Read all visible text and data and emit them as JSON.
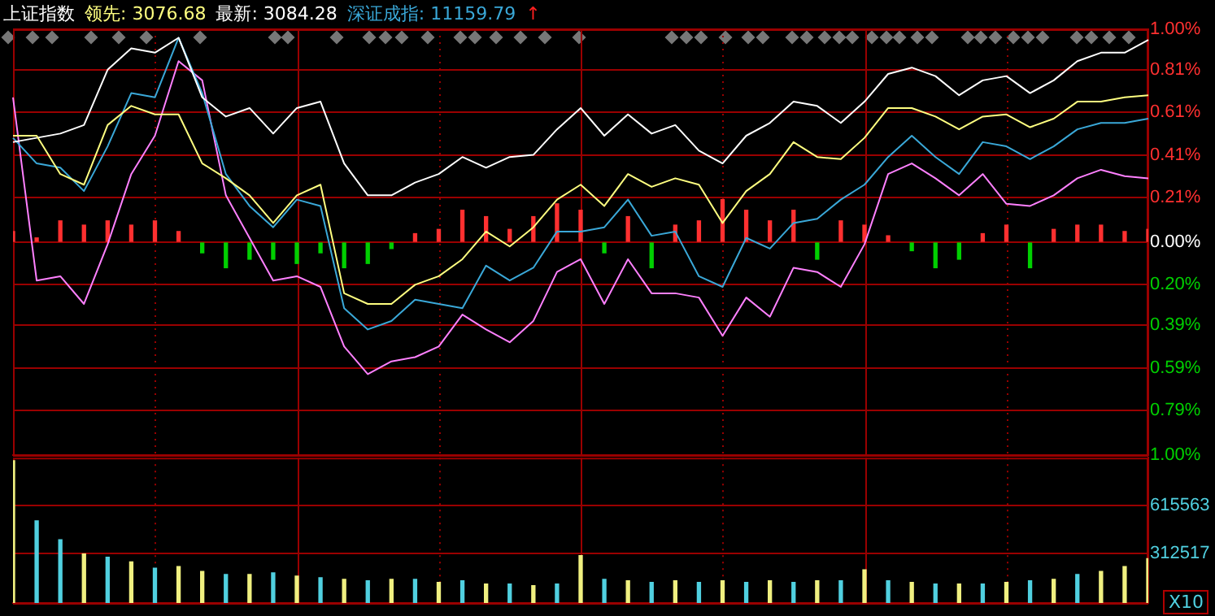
{
  "chart_data": [
    {
      "type": "line",
      "title": "上证指数",
      "categories": [
        null,
        null,
        null,
        null,
        null,
        null,
        null,
        null,
        null,
        null,
        null,
        null,
        null,
        null,
        null,
        null,
        null,
        null,
        null,
        null,
        null,
        null,
        null,
        null,
        null,
        null,
        null,
        null,
        null,
        null,
        null,
        null,
        null,
        null,
        null,
        null,
        null,
        null,
        null,
        null,
        null,
        null,
        null,
        null,
        null,
        null,
        null,
        null,
        null
      ],
      "series": [
        {
          "name": "领先: 3076.68",
          "color": "#ffff80",
          "values": [
            0.5,
            0.5,
            0.32,
            0.27,
            0.55,
            0.64,
            0.6,
            0.6,
            0.37,
            0.3,
            0.22,
            0.09,
            0.22,
            0.27,
            -0.24,
            -0.29,
            -0.29,
            -0.2,
            -0.16,
            -0.08,
            0.05,
            -0.02,
            0.07,
            0.2,
            0.27,
            0.17,
            0.32,
            0.26,
            0.3,
            0.27,
            0.09,
            0.24,
            0.32,
            0.47,
            0.4,
            0.39,
            0.49,
            0.63,
            0.63,
            0.59,
            0.53,
            0.59,
            0.6,
            0.54,
            0.58,
            0.66,
            0.66,
            0.68,
            0.69
          ]
        },
        {
          "name": "最新: 3084.28",
          "color": "#ffffff",
          "values": [
            0.47,
            0.49,
            0.51,
            0.55,
            0.81,
            0.91,
            0.89,
            0.96,
            0.68,
            0.59,
            0.63,
            0.51,
            0.63,
            0.66,
            0.37,
            0.22,
            0.22,
            0.28,
            0.32,
            0.4,
            0.35,
            0.4,
            0.41,
            0.53,
            0.63,
            0.5,
            0.6,
            0.51,
            0.55,
            0.43,
            0.37,
            0.5,
            0.56,
            0.66,
            0.64,
            0.56,
            0.66,
            0.79,
            0.82,
            0.78,
            0.69,
            0.76,
            0.78,
            0.7,
            0.76,
            0.85,
            0.89,
            0.89,
            0.95
          ]
        },
        {
          "name": "深证成指: 11159.79",
          "color": "#3aa8d8",
          "values": [
            0.49,
            0.37,
            0.35,
            0.24,
            0.45,
            0.7,
            0.68,
            0.96,
            0.7,
            0.32,
            0.17,
            0.07,
            0.2,
            0.17,
            -0.31,
            -0.41,
            -0.37,
            -0.27,
            -0.29,
            -0.31,
            -0.11,
            -0.18,
            -0.12,
            0.05,
            0.05,
            0.07,
            0.2,
            0.03,
            0.05,
            -0.16,
            -0.21,
            0.02,
            -0.03,
            0.09,
            0.11,
            0.2,
            0.27,
            0.4,
            0.5,
            0.4,
            0.32,
            0.47,
            0.45,
            0.39,
            0.45,
            0.53,
            0.56,
            0.56,
            0.58
          ]
        },
        {
          "color": "#ff80ff",
          "values": [
            0.68,
            -0.18,
            -0.16,
            -0.29,
            -0.01,
            0.32,
            0.5,
            0.85,
            0.76,
            0.22,
            0.02,
            -0.18,
            -0.16,
            -0.21,
            -0.49,
            -0.62,
            -0.56,
            -0.54,
            -0.49,
            -0.34,
            -0.41,
            -0.47,
            -0.37,
            -0.14,
            -0.08,
            -0.29,
            -0.08,
            -0.24,
            -0.24,
            -0.26,
            -0.44,
            -0.26,
            -0.35,
            -0.12,
            -0.14,
            -0.21,
            -0.01,
            0.32,
            0.37,
            0.3,
            0.22,
            0.32,
            0.18,
            0.17,
            0.22,
            0.3,
            0.34,
            0.31,
            0.3
          ]
        },
        {
          "type": "bar",
          "colors": [
            "#ff3030",
            "#ff3030",
            "#ff3030",
            "#ff3030",
            "#ff3030",
            "#ff3030",
            "#ff3030",
            "#ff3030",
            "#00d000",
            "#00d000",
            "#00d000",
            "#00d000",
            "#00d000",
            "#00d000",
            "#00d000",
            "#00d000",
            "#00d000",
            "#ff3030",
            "#ff3030",
            "#ff3030",
            "#ff3030",
            "#ff3030",
            "#ff3030",
            "#ff3030",
            "#ff3030",
            "#00d000",
            "#ff3030",
            "#00d000",
            "#ff3030",
            "#ff3030",
            "#ff3030",
            "#ff3030",
            "#ff3030",
            "#ff3030",
            "#00d000",
            "#ff3030",
            "#ff3030",
            "#ff3030",
            "#00d000",
            "#00d000",
            "#00d000",
            "#ff3030",
            "#ff3030",
            "#00d000",
            "#ff3030",
            "#ff3030",
            "#ff3030",
            "#ff3030",
            "#ff3030"
          ],
          "values": [
            0.05,
            0.02,
            0.1,
            0.08,
            0.1,
            0.08,
            0.1,
            0.05,
            -0.05,
            -0.12,
            -0.08,
            -0.08,
            -0.1,
            -0.05,
            -0.12,
            -0.1,
            -0.03,
            0.04,
            0.06,
            0.15,
            0.12,
            0.06,
            0.12,
            0.18,
            0.15,
            -0.05,
            0.12,
            -0.12,
            0.08,
            0.1,
            0.2,
            0.15,
            0.1,
            0.15,
            -0.08,
            0.1,
            0.08,
            0.03,
            -0.04,
            -0.12,
            -0.08,
            0.04,
            0.08,
            -0.12,
            0.06,
            0.08,
            0.08,
            0.05,
            0.06
          ]
        }
      ],
      "annotations": [
        "↑"
      ],
      "ylim": [
        -1,
        1
      ],
      "yticks": [
        {
          "value": 1,
          "label": "1.00%"
        },
        {
          "value": 0.81,
          "label": "0.81%"
        },
        {
          "value": 0.61,
          "label": "0.61%"
        },
        {
          "value": 0.41,
          "label": "0.41%"
        },
        {
          "value": 0.21,
          "label": "0.21%"
        },
        {
          "value": 0,
          "label": "0.00%"
        },
        {
          "value": -0.2,
          "label": "0.20%"
        },
        {
          "value": -0.39,
          "label": "0.39%"
        },
        {
          "value": -0.59,
          "label": "0.59%"
        },
        {
          "value": -0.79,
          "label": "0.79%"
        },
        {
          "value": -1,
          "label": "1.00%"
        }
      ],
      "grid": true,
      "marker": "none",
      "tick_labels": "y"
    },
    {
      "type": "bar",
      "categories": [
        null,
        null,
        null,
        null,
        null,
        null,
        null,
        null,
        null,
        null,
        null,
        null,
        null,
        null,
        null,
        null,
        null,
        null,
        null,
        null,
        null,
        null,
        null,
        null,
        null,
        null,
        null,
        null,
        null,
        null,
        null,
        null,
        null,
        null,
        null,
        null,
        null,
        null,
        null,
        null,
        null,
        null,
        null,
        null,
        null,
        null,
        null,
        null,
        null
      ],
      "values": [
        900000,
        520000,
        400000,
        310000,
        290000,
        260000,
        220000,
        230000,
        200000,
        180000,
        180000,
        190000,
        170000,
        160000,
        150000,
        140000,
        150000,
        150000,
        130000,
        140000,
        120000,
        120000,
        110000,
        120000,
        300000,
        150000,
        140000,
        130000,
        140000,
        130000,
        140000,
        130000,
        140000,
        130000,
        140000,
        140000,
        210000,
        140000,
        130000,
        120000,
        120000,
        120000,
        130000,
        140000,
        150000,
        180000,
        200000,
        230000,
        280000
      ],
      "colors": [
        "#f0f080",
        "#50d0e0",
        "#50d0e0",
        "#f0f080",
        "#50d0e0",
        "#f0f080",
        "#50d0e0",
        "#f0f080",
        "#f0f080",
        "#50d0e0",
        "#f0f080",
        "#50d0e0",
        "#f0f080",
        "#50d0e0",
        "#f0f080",
        "#50d0e0",
        "#f0f080",
        "#50d0e0",
        "#f0f080",
        "#50d0e0",
        "#f0f080",
        "#50d0e0",
        "#f0f080",
        "#50d0e0",
        "#f0f080",
        "#50d0e0",
        "#f0f080",
        "#50d0e0",
        "#f0f080",
        "#50d0e0",
        "#f0f080",
        "#50d0e0",
        "#f0f080",
        "#50d0e0",
        "#f0f080",
        "#50d0e0",
        "#f0f080",
        "#50d0e0",
        "#f0f080",
        "#50d0e0",
        "#f0f080",
        "#50d0e0",
        "#f0f080",
        "#50d0e0",
        "#f0f080",
        "#50d0e0",
        "#f0f080",
        "#f0f080",
        "#f0f080"
      ],
      "annotations": [
        "X10"
      ],
      "ylim": [
        0,
        918600
      ],
      "yticks": [
        312517,
        615563
      ],
      "grid": true,
      "tick_labels": "y"
    }
  ]
}
